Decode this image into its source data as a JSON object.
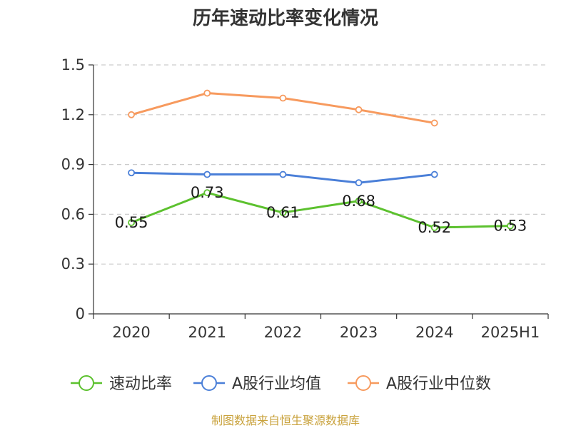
{
  "chart_data": {
    "type": "line",
    "title": "历年速动比率变化情况",
    "categories": [
      "2020",
      "2021",
      "2022",
      "2023",
      "2024",
      "2025H1"
    ],
    "ylim": [
      0,
      1.5
    ],
    "yticks": [
      "0",
      "0.3",
      "0.6",
      "0.9",
      "1.2",
      "1.5"
    ],
    "grid": true,
    "legend_position": "bottom",
    "series": [
      {
        "name": "速动比率",
        "color": "#5cc12e",
        "values": [
          0.55,
          0.73,
          0.61,
          0.68,
          0.52,
          0.53
        ],
        "labels": [
          "0.55",
          "0.73",
          "0.61",
          "0.68",
          "0.52",
          "0.53"
        ]
      },
      {
        "name": "A股行业均值",
        "color": "#4a7fd8",
        "values": [
          0.85,
          0.84,
          0.84,
          0.79,
          0.84,
          null
        ]
      },
      {
        "name": "A股行业中位数",
        "color": "#f79a5e",
        "values": [
          1.2,
          1.33,
          1.3,
          1.23,
          1.15,
          null
        ]
      }
    ]
  },
  "source_text": "制图数据来自恒生聚源数据库"
}
